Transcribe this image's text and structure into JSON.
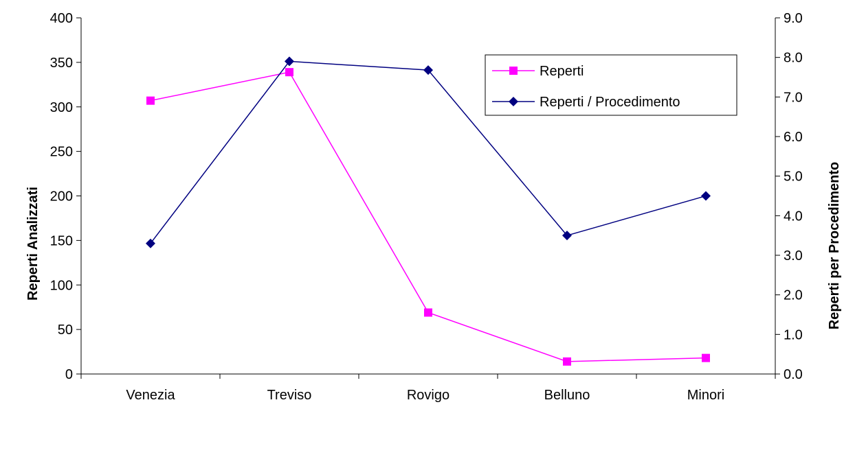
{
  "chart_data": {
    "type": "line",
    "categories": [
      "Venezia",
      "Treviso",
      "Rovigo",
      "Belluno",
      "Minori"
    ],
    "series": [
      {
        "name": "Reperti",
        "axis": "left",
        "color": "#ff00ff",
        "marker": "square",
        "values": [
          307,
          339,
          69,
          14,
          18
        ]
      },
      {
        "name": "Reperti / Procedimento",
        "axis": "right",
        "color": "#000080",
        "marker": "diamond",
        "values": [
          3.3,
          7.9,
          7.68,
          3.5,
          4.5
        ]
      }
    ],
    "ylabel": "Reperti Analizzati",
    "y2label": "Reperti per Procedimento",
    "ylim": [
      0,
      400
    ],
    "y2lim": [
      0,
      9
    ],
    "yticks": [
      "0",
      "50",
      "100",
      "150",
      "200",
      "250",
      "300",
      "350",
      "400"
    ],
    "y2ticks": [
      "0.0",
      "1.0",
      "2.0",
      "3.0",
      "4.0",
      "5.0",
      "6.0",
      "7.0",
      "8.0",
      "9.0"
    ],
    "grid": false,
    "legend": "top-right"
  }
}
